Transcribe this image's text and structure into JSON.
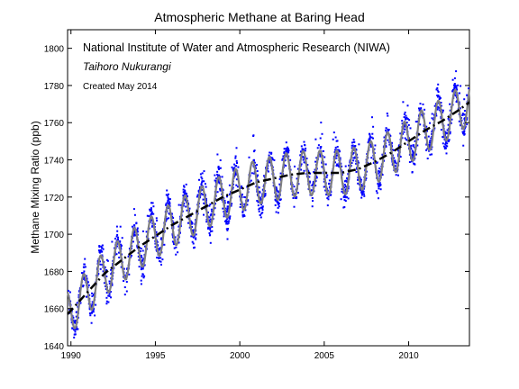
{
  "chart_data": {
    "type": "scatter",
    "title": "Atmospheric Methane at Baring Head",
    "ylabel": "Methane Mixing Ratio (ppb)",
    "xlabel": "",
    "xlim": [
      1989.8,
      2013.6
    ],
    "ylim": [
      1640,
      1810
    ],
    "grid": false,
    "legend": "none",
    "x_ticks": [
      1990,
      1995,
      2000,
      2005,
      2010
    ],
    "y_ticks": [
      1640,
      1660,
      1680,
      1700,
      1720,
      1740,
      1760,
      1780,
      1800
    ],
    "annotations": [
      "National Institute of Water and Atmospheric Research (NIWA)",
      "Taihoro Nukurangi",
      "Created May 2014"
    ],
    "series": [
      {
        "kind": "points",
        "style": "blue dots",
        "color": "#0000ff",
        "seasonal_amplitude_ppb": 12,
        "approx_point_count": 2300
      },
      {
        "kind": "seasonal fit",
        "style": "gray solid line",
        "color": "#808080"
      },
      {
        "kind": "trend",
        "style": "black dash-dot line",
        "color": "#000000",
        "x": [
          1989.8,
          1991,
          1992,
          1993,
          1994,
          1995,
          1996,
          1997,
          1998,
          1999,
          2000,
          2001,
          2002,
          2003,
          2004,
          2005,
          2006,
          2007,
          2008,
          2009,
          2010,
          2011,
          2012,
          2013,
          2013.6
        ],
        "y": [
          1657,
          1669,
          1679,
          1686,
          1693,
          1699,
          1705,
          1710,
          1715,
          1720,
          1724,
          1728,
          1730,
          1732,
          1733,
          1733,
          1733,
          1735,
          1739,
          1744,
          1750,
          1756,
          1761,
          1767,
          1771
        ]
      }
    ]
  }
}
